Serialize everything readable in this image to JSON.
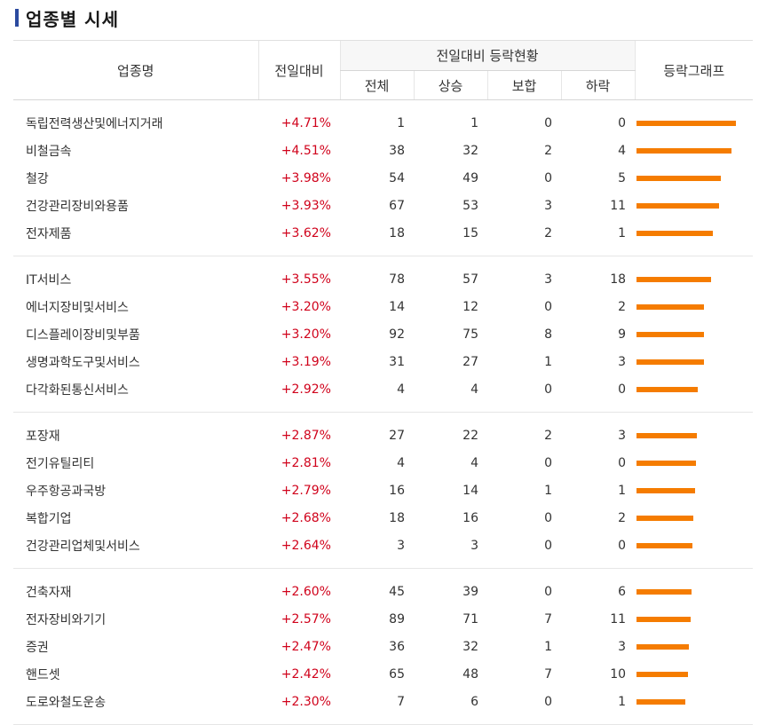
{
  "title": "업종별 시세",
  "header": {
    "name": "업종명",
    "rate": "전일대비",
    "status_group": "전일대비 등락현황",
    "total": "전체",
    "up": "상승",
    "flat": "보합",
    "down": "하락",
    "graph": "등락그래프"
  },
  "colors": {
    "accent": "#2b4a9f",
    "up_text": "#d0021b",
    "bar": "#f57c00"
  },
  "groups": [
    {
      "rows": [
        {
          "name": "독립전력생산및에너지거래",
          "rate": "+4.71%",
          "rate_value": 4.71,
          "total": "1",
          "up": "1",
          "flat": "0",
          "down": "0"
        },
        {
          "name": "비철금속",
          "rate": "+4.51%",
          "rate_value": 4.51,
          "total": "38",
          "up": "32",
          "flat": "2",
          "down": "4"
        },
        {
          "name": "철강",
          "rate": "+3.98%",
          "rate_value": 3.98,
          "total": "54",
          "up": "49",
          "flat": "0",
          "down": "5"
        },
        {
          "name": "건강관리장비와용품",
          "rate": "+3.93%",
          "rate_value": 3.93,
          "total": "67",
          "up": "53",
          "flat": "3",
          "down": "11"
        },
        {
          "name": "전자제품",
          "rate": "+3.62%",
          "rate_value": 3.62,
          "total": "18",
          "up": "15",
          "flat": "2",
          "down": "1"
        }
      ]
    },
    {
      "rows": [
        {
          "name": "IT서비스",
          "rate": "+3.55%",
          "rate_value": 3.55,
          "total": "78",
          "up": "57",
          "flat": "3",
          "down": "18"
        },
        {
          "name": "에너지장비및서비스",
          "rate": "+3.20%",
          "rate_value": 3.2,
          "total": "14",
          "up": "12",
          "flat": "0",
          "down": "2"
        },
        {
          "name": "디스플레이장비및부품",
          "rate": "+3.20%",
          "rate_value": 3.2,
          "total": "92",
          "up": "75",
          "flat": "8",
          "down": "9"
        },
        {
          "name": "생명과학도구및서비스",
          "rate": "+3.19%",
          "rate_value": 3.19,
          "total": "31",
          "up": "27",
          "flat": "1",
          "down": "3"
        },
        {
          "name": "다각화된통신서비스",
          "rate": "+2.92%",
          "rate_value": 2.92,
          "total": "4",
          "up": "4",
          "flat": "0",
          "down": "0"
        }
      ]
    },
    {
      "rows": [
        {
          "name": "포장재",
          "rate": "+2.87%",
          "rate_value": 2.87,
          "total": "27",
          "up": "22",
          "flat": "2",
          "down": "3"
        },
        {
          "name": "전기유틸리티",
          "rate": "+2.81%",
          "rate_value": 2.81,
          "total": "4",
          "up": "4",
          "flat": "0",
          "down": "0"
        },
        {
          "name": "우주항공과국방",
          "rate": "+2.79%",
          "rate_value": 2.79,
          "total": "16",
          "up": "14",
          "flat": "1",
          "down": "1"
        },
        {
          "name": "복합기업",
          "rate": "+2.68%",
          "rate_value": 2.68,
          "total": "18",
          "up": "16",
          "flat": "0",
          "down": "2"
        },
        {
          "name": "건강관리업체및서비스",
          "rate": "+2.64%",
          "rate_value": 2.64,
          "total": "3",
          "up": "3",
          "flat": "0",
          "down": "0"
        }
      ]
    },
    {
      "rows": [
        {
          "name": "건축자재",
          "rate": "+2.60%",
          "rate_value": 2.6,
          "total": "45",
          "up": "39",
          "flat": "0",
          "down": "6"
        },
        {
          "name": "전자장비와기기",
          "rate": "+2.57%",
          "rate_value": 2.57,
          "total": "89",
          "up": "71",
          "flat": "7",
          "down": "11"
        },
        {
          "name": "증권",
          "rate": "+2.47%",
          "rate_value": 2.47,
          "total": "36",
          "up": "32",
          "flat": "1",
          "down": "3"
        },
        {
          "name": "핸드셋",
          "rate": "+2.42%",
          "rate_value": 2.42,
          "total": "65",
          "up": "48",
          "flat": "7",
          "down": "10"
        },
        {
          "name": "도로와철도운송",
          "rate": "+2.30%",
          "rate_value": 2.3,
          "total": "7",
          "up": "6",
          "flat": "0",
          "down": "1"
        }
      ]
    }
  ]
}
